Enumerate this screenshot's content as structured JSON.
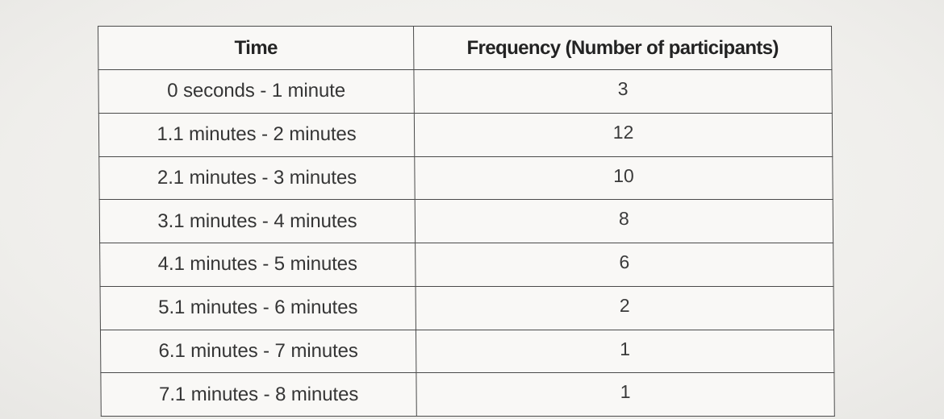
{
  "table": {
    "headers": {
      "time": "Time",
      "frequency": "Frequency (Number of participants)"
    },
    "rows": [
      {
        "time": "0 seconds - 1 minute",
        "frequency": "3"
      },
      {
        "time": "1.1 minutes - 2 minutes",
        "frequency": "12"
      },
      {
        "time": "2.1 minutes - 3 minutes",
        "frequency": "10"
      },
      {
        "time": "3.1 minutes - 4 minutes",
        "frequency": "8"
      },
      {
        "time": "4.1 minutes - 5 minutes",
        "frequency": "6"
      },
      {
        "time": "5.1 minutes - 6 minutes",
        "frequency": "2"
      },
      {
        "time": "6.1 minutes - 7 minutes",
        "frequency": "1"
      },
      {
        "time": "7.1 minutes - 8 minutes",
        "frequency": "1"
      }
    ]
  }
}
